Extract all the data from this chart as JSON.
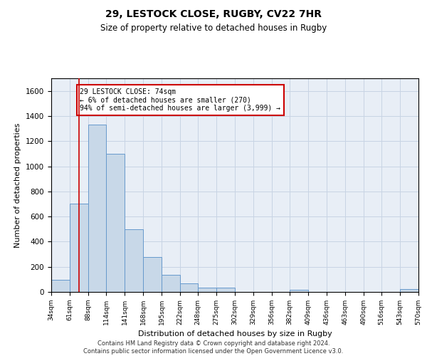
{
  "title_main": "29, LESTOCK CLOSE, RUGBY, CV22 7HR",
  "title_sub": "Size of property relative to detached houses in Rugby",
  "xlabel": "Distribution of detached houses by size in Rugby",
  "ylabel": "Number of detached properties",
  "bar_color": "#c8d8e8",
  "bar_edge_color": "#6699cc",
  "vline_color": "#cc0000",
  "vline_x": 74,
  "annotation_text": "29 LESTOCK CLOSE: 74sqm\n← 6% of detached houses are smaller (270)\n94% of semi-detached houses are larger (3,999) →",
  "annotation_box_color": "#ffffff",
  "annotation_box_edge": "#cc0000",
  "bin_edges": [
    34,
    61,
    88,
    114,
    141,
    168,
    195,
    222,
    248,
    275,
    302,
    329,
    356,
    382,
    409,
    436,
    463,
    490,
    516,
    543,
    570
  ],
  "bar_heights": [
    95,
    700,
    1330,
    1100,
    500,
    275,
    135,
    70,
    35,
    35,
    0,
    0,
    0,
    15,
    0,
    0,
    0,
    0,
    0,
    20
  ],
  "ylim": [
    0,
    1700
  ],
  "yticks": [
    0,
    200,
    400,
    600,
    800,
    1000,
    1200,
    1400,
    1600
  ],
  "grid_color": "#c8d4e4",
  "bg_color": "#e8eef6",
  "footer_text": "Contains HM Land Registry data © Crown copyright and database right 2024.\nContains public sector information licensed under the Open Government Licence v3.0.",
  "figsize": [
    6.0,
    5.0
  ],
  "dpi": 100
}
